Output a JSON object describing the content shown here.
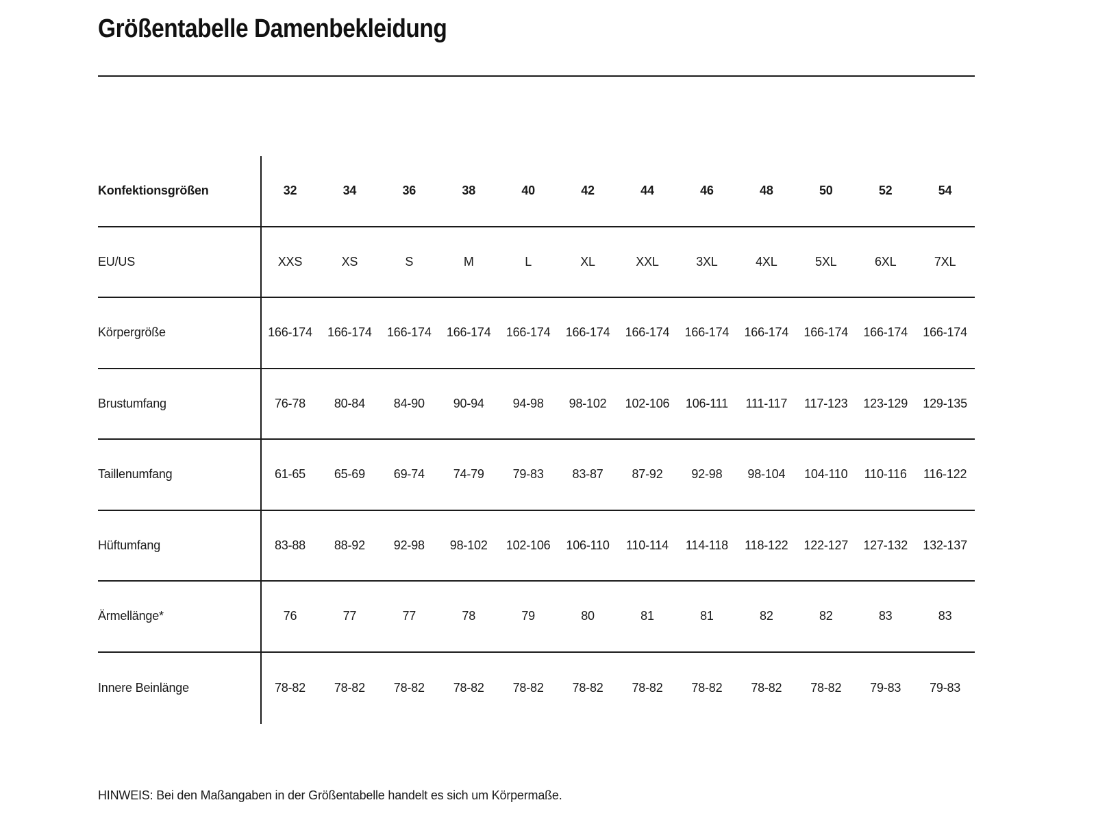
{
  "page": {
    "title": "Größentabelle Damenbekleidung",
    "note": "HINWEIS: Bei den Maßangaben in der Größentabelle handelt es sich um Körpermaße."
  },
  "table": {
    "header": {
      "label": "Konfektionsgrößen",
      "values": [
        "32",
        "34",
        "36",
        "38",
        "40",
        "42",
        "44",
        "46",
        "48",
        "50",
        "52",
        "54"
      ]
    },
    "rows": [
      {
        "label": "EU/US",
        "values": [
          "XXS",
          "XS",
          "S",
          "M",
          "L",
          "XL",
          "XXL",
          "3XL",
          "4XL",
          "5XL",
          "6XL",
          "7XL"
        ]
      },
      {
        "label": "Körpergröße",
        "values": [
          "166-174",
          "166-174",
          "166-174",
          "166-174",
          "166-174",
          "166-174",
          "166-174",
          "166-174",
          "166-174",
          "166-174",
          "166-174",
          "166-174"
        ]
      },
      {
        "label": "Brustumfang",
        "values": [
          "76-78",
          "80-84",
          "84-90",
          "90-94",
          "94-98",
          "98-102",
          "102-106",
          "106-111",
          "111-117",
          "117-123",
          "123-129",
          "129-135"
        ]
      },
      {
        "label": "Taillenumfang",
        "values": [
          "61-65",
          "65-69",
          "69-74",
          "74-79",
          "79-83",
          "83-87",
          "87-92",
          "92-98",
          "98-104",
          "104-110",
          "110-116",
          "116-122"
        ]
      },
      {
        "label": "Hüftumfang",
        "values": [
          "83-88",
          "88-92",
          "92-98",
          "98-102",
          "102-106",
          "106-110",
          "110-114",
          "114-118",
          "118-122",
          "122-127",
          "127-132",
          "132-137"
        ]
      },
      {
        "label": "Ärmellänge*",
        "values": [
          "76",
          "77",
          "77",
          "78",
          "79",
          "80",
          "81",
          "81",
          "82",
          "82",
          "83",
          "83"
        ]
      },
      {
        "label": "Innere Beinlänge",
        "values": [
          "78-82",
          "78-82",
          "78-82",
          "78-82",
          "78-82",
          "78-82",
          "78-82",
          "78-82",
          "78-82",
          "78-82",
          "79-83",
          "79-83"
        ]
      }
    ]
  }
}
